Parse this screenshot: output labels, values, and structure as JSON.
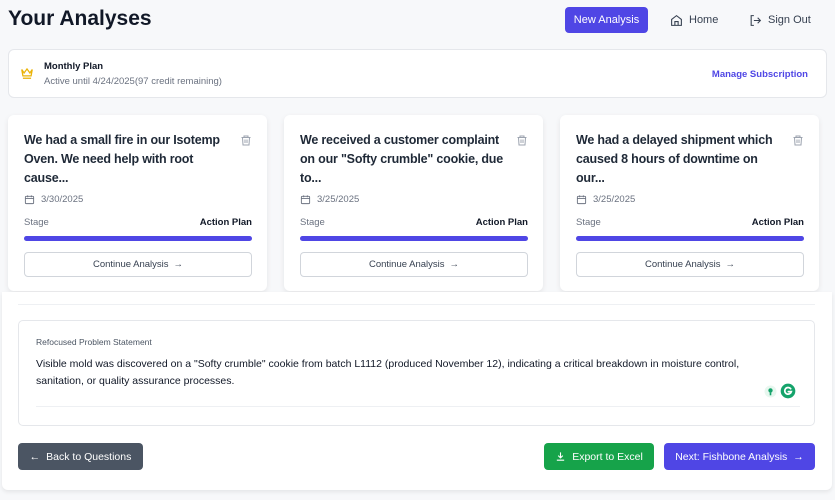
{
  "header": {
    "title": "Your Analyses",
    "new_analysis": "New Analysis",
    "home": "Home",
    "sign_out": "Sign Out"
  },
  "plan": {
    "name": "Monthly Plan",
    "status": "Active until 4/24/2025(97 credit remaining)",
    "manage": "Manage Subscription"
  },
  "analyses": [
    {
      "title": "We had a small fire in our Isotemp Oven. We need help with root cause...",
      "date": "3/30/2025",
      "stage_label": "Stage",
      "stage": "Action Plan",
      "progress": 1.0,
      "continue": "Continue Analysis"
    },
    {
      "title": "We received a customer complaint on our \"Softy crumble\" cookie, due to...",
      "date": "3/25/2025",
      "stage_label": "Stage",
      "stage": "Action Plan",
      "progress": 1.0,
      "continue": "Continue Analysis"
    },
    {
      "title": "We had a delayed shipment which caused 8 hours of downtime on our...",
      "date": "3/25/2025",
      "stage_label": "Stage",
      "stage": "Action Plan",
      "progress": 1.0,
      "continue": "Continue Analysis"
    }
  ],
  "problem": {
    "label": "Refocused Problem Statement",
    "value": "Visible mold was discovered on a \"Softy crumble\" cookie from batch L1112 (produced November 12), indicating a critical breakdown in moisture control, sanitation, or quality assurance processes."
  },
  "actions": {
    "back": "Back to Questions",
    "export": "Export to Excel",
    "next": "Next: Fishbone Analysis"
  },
  "colors": {
    "primary": "#4f46e5",
    "success": "#16a34a",
    "secondary": "#4b5563",
    "crown": "#eab308"
  }
}
